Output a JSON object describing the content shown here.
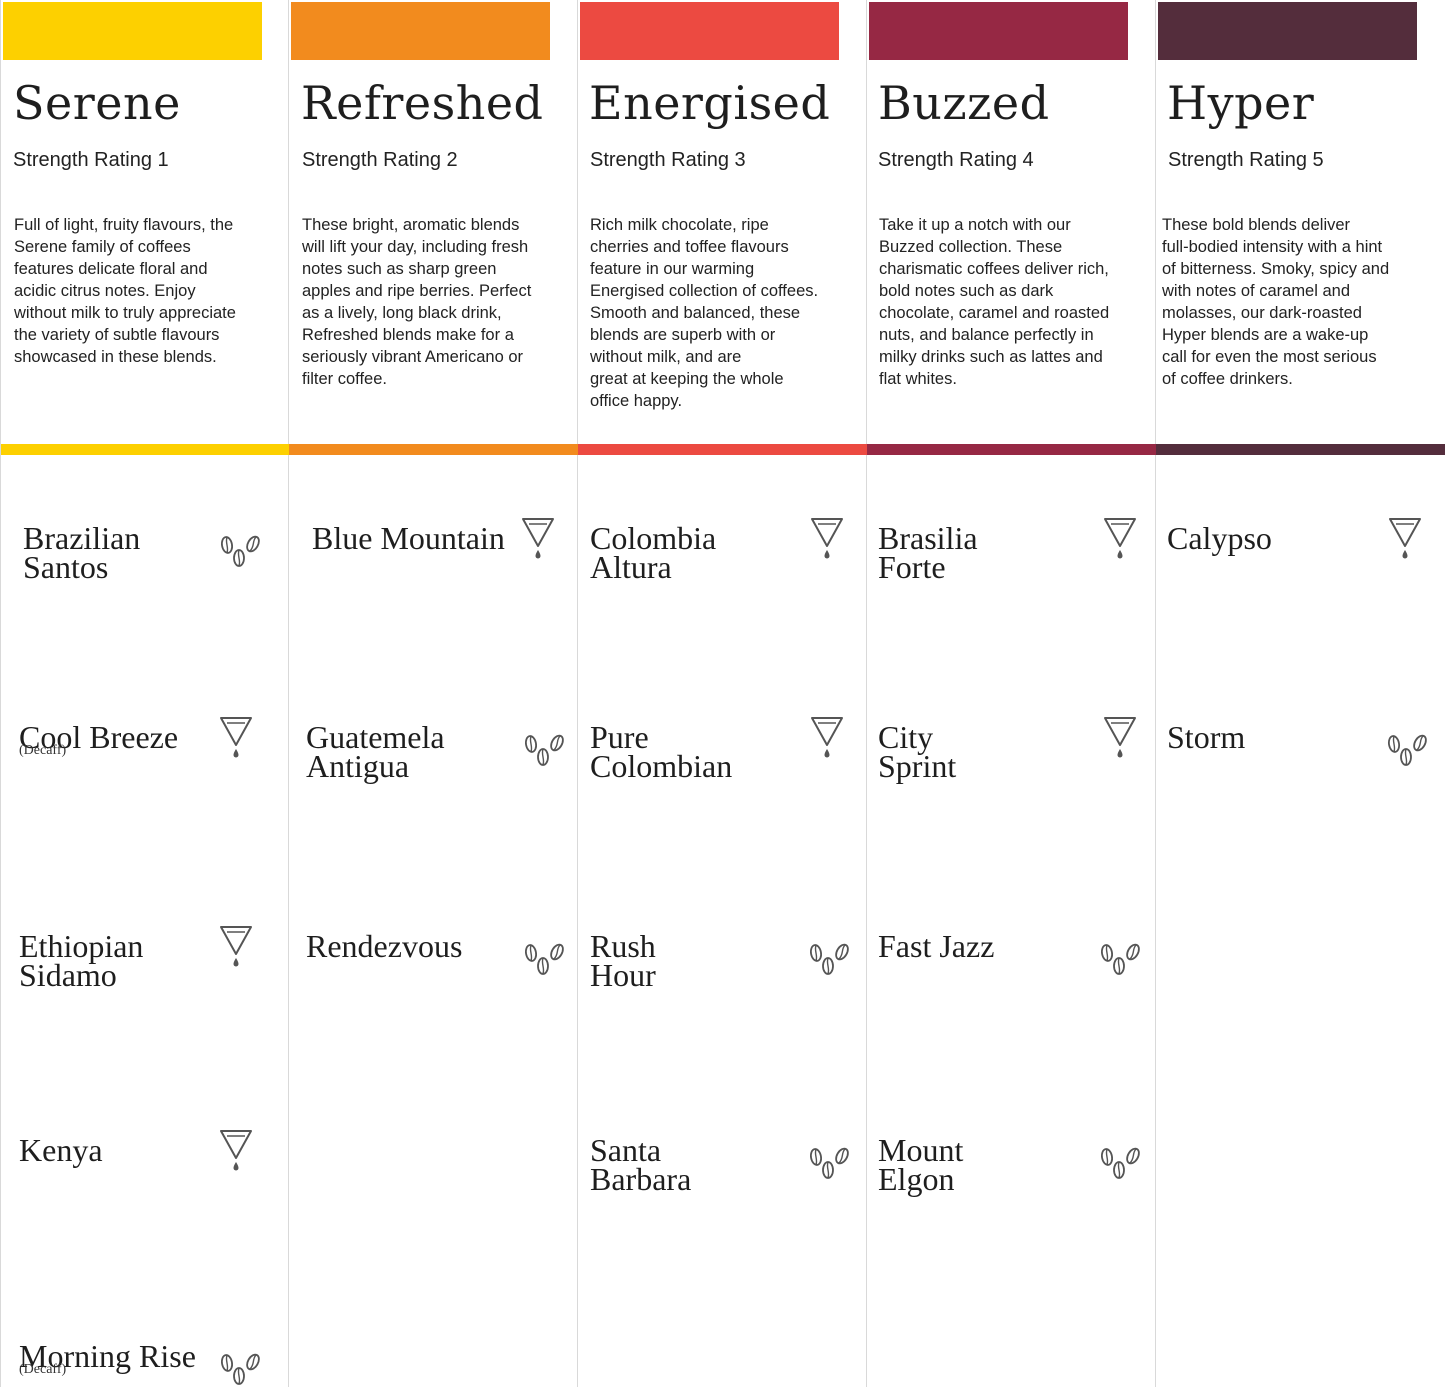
{
  "colors": {
    "serene": "#FDD000",
    "refreshed": "#F28B1E",
    "energised": "#EC4A41",
    "buzzed": "#962844",
    "hyper": "#542D3C",
    "divider": "#d9d9d9",
    "icon": "#555555"
  },
  "columns": [
    {
      "id": "serene",
      "title": "Serene",
      "rating": "Strength Rating 1",
      "description": "Full of light, fruity flavours, the\nSerene family of coffees\nfeatures delicate floral and\nacidic citrus notes. Enjoy\nwithout milk to truly appreciate\nthe variety of subtle flavours\nshowcased in these blends.",
      "items": [
        {
          "name": "Brazilian\nSantos",
          "sub": "",
          "icon": "coffee-beans-icon"
        },
        {
          "name": "Cool Breeze",
          "sub": "(Decaff)",
          "icon": "filter-drip-icon"
        },
        {
          "name": "Ethiopian\nSidamo",
          "sub": "",
          "icon": "filter-drip-icon"
        },
        {
          "name": "Kenya",
          "sub": "",
          "icon": "filter-drip-icon"
        },
        {
          "name": "Morning Rise",
          "sub": "(Decaff)",
          "icon": "coffee-beans-icon"
        }
      ]
    },
    {
      "id": "refreshed",
      "title": "Refreshed",
      "rating": "Strength Rating 2",
      "description": "These bright, aromatic blends\nwill lift your day, including fresh\nnotes such as sharp green\napples and ripe berries. Perfect\nas a lively, long black drink,\nRefreshed blends make for a\nseriously vibrant Americano or\nfilter coffee.",
      "items": [
        {
          "name": "Blue Mountain",
          "sub": "",
          "icon": "filter-drip-icon"
        },
        {
          "name": "Guatemela\nAntigua",
          "sub": "",
          "icon": "coffee-beans-icon"
        },
        {
          "name": "Rendezvous",
          "sub": "",
          "icon": "coffee-beans-icon"
        }
      ]
    },
    {
      "id": "energised",
      "title": "Energised",
      "rating": "Strength Rating 3",
      "description": "Rich milk chocolate, ripe\ncherries and toffee flavours\nfeature in our warming\nEnergised collection of coffees.\nSmooth and balanced, these\nblends are superb with or\nwithout milk, and are\ngreat at keeping the whole\noffice happy.",
      "items": [
        {
          "name": "Colombia\nAltura",
          "sub": "",
          "icon": "filter-drip-icon"
        },
        {
          "name": "Pure\nColombian",
          "sub": "",
          "icon": "filter-drip-icon"
        },
        {
          "name": "Rush\nHour",
          "sub": "",
          "icon": "coffee-beans-icon"
        },
        {
          "name": "Santa\nBarbara",
          "sub": "",
          "icon": "coffee-beans-icon"
        }
      ]
    },
    {
      "id": "buzzed",
      "title": "Buzzed",
      "rating": "Strength Rating 4",
      "description": "Take it up a notch with our\nBuzzed collection. These\ncharismatic coffees deliver rich,\nbold notes such as dark\nchocolate, caramel and roasted\nnuts, and balance perfectly in\nmilky drinks such as lattes and\nflat whites.",
      "items": [
        {
          "name": "Brasilia\nForte",
          "sub": "",
          "icon": "filter-drip-icon"
        },
        {
          "name": "City\nSprint",
          "sub": "",
          "icon": "filter-drip-icon"
        },
        {
          "name": "Fast Jazz",
          "sub": "",
          "icon": "coffee-beans-icon"
        },
        {
          "name": "Mount\nElgon",
          "sub": "",
          "icon": "coffee-beans-icon"
        }
      ]
    },
    {
      "id": "hyper",
      "title": "Hyper",
      "rating": "Strength Rating 5",
      "description": "These bold blends deliver\nfull-bodied intensity with a hint\nof bitterness. Smoky, spicy and\nwith notes of caramel and\nmolasses, our dark-roasted\nHyper blends are a wake-up\ncall for even the most serious\nof coffee drinkers.",
      "items": [
        {
          "name": "Calypso",
          "sub": "",
          "icon": "filter-drip-icon"
        },
        {
          "name": "Storm",
          "sub": "",
          "icon": "coffee-beans-icon"
        }
      ]
    }
  ]
}
